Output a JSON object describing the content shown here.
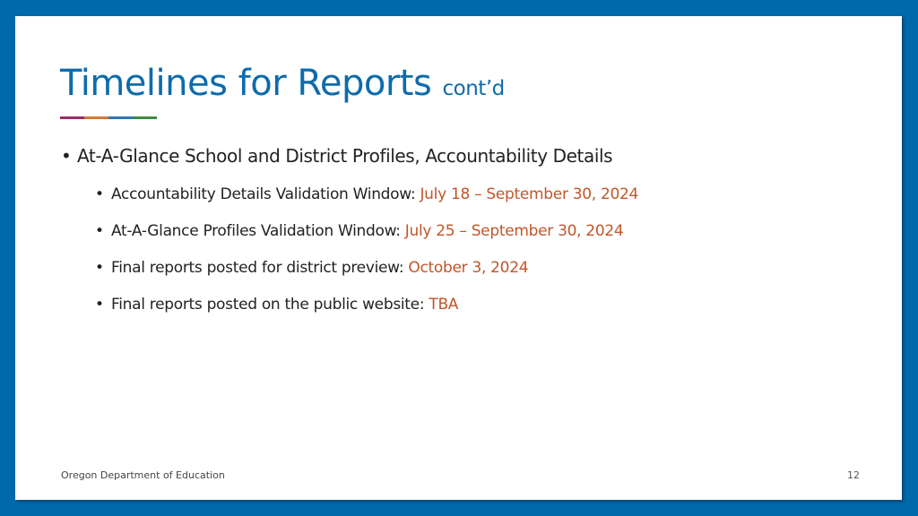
{
  "slide": {
    "title": "Timelines for Reports",
    "title_suffix": "cont’d",
    "accent_colors": [
      "#9b2d67",
      "#d5773a",
      "#2f77b6",
      "#3f8b46"
    ],
    "frame_color": "#0069aa",
    "highlight_color": "#c0562a",
    "bullet": "At-A-Glance School and District Profiles, Accountability Details",
    "sub_bullets": [
      {
        "label": "Accountability Details Validation Window: ",
        "value": "July 18 – September 30, 2024"
      },
      {
        "label": "At-A-Glance Profiles Validation Window: ",
        "value": "July 25 – September 30, 2024"
      },
      {
        "label": "Final reports posted for district preview: ",
        "value": "October 3, 2024"
      },
      {
        "label": "Final reports posted on the public website: ",
        "value": "TBA"
      }
    ],
    "footer": "Oregon Department of Education",
    "page_number": "12"
  }
}
